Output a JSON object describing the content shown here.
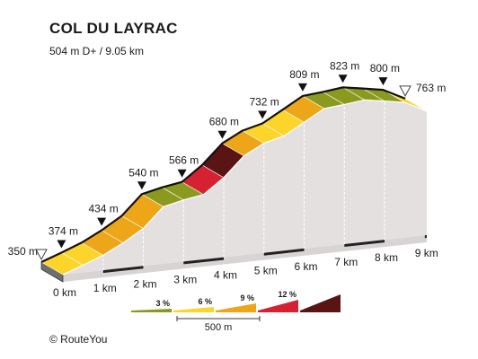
{
  "title": "COL DU LAYRAC",
  "subtitle": "504 m D+ / 9.05 km",
  "credit": "©  RouteYou",
  "chart_data": {
    "type": "area",
    "title": "COL DU LAYRAC",
    "subtitle": "504 m D+ / 9.05 km",
    "xlabel": "",
    "ylabel": "",
    "x_unit": "km",
    "xlim": [
      0,
      9.05
    ],
    "ylim": [
      350,
      823
    ],
    "x_ticks": [
      "0 km",
      "1 km",
      "2 km",
      "3 km",
      "4 km",
      "5 km",
      "6 km",
      "7 km",
      "8 km",
      "9 km"
    ],
    "profile": [
      {
        "x": 0.0,
        "y": 350
      },
      {
        "x": 0.5,
        "y": 374
      },
      {
        "x": 1.0,
        "y": 400
      },
      {
        "x": 1.5,
        "y": 434
      },
      {
        "x": 2.0,
        "y": 475
      },
      {
        "x": 2.5,
        "y": 540
      },
      {
        "x": 3.0,
        "y": 555
      },
      {
        "x": 3.5,
        "y": 566
      },
      {
        "x": 4.0,
        "y": 615
      },
      {
        "x": 4.5,
        "y": 680
      },
      {
        "x": 5.0,
        "y": 715
      },
      {
        "x": 5.5,
        "y": 732
      },
      {
        "x": 6.0,
        "y": 770
      },
      {
        "x": 6.5,
        "y": 809
      },
      {
        "x": 7.0,
        "y": 815
      },
      {
        "x": 7.5,
        "y": 823
      },
      {
        "x": 8.0,
        "y": 812
      },
      {
        "x": 8.5,
        "y": 800
      },
      {
        "x": 9.05,
        "y": 763
      }
    ],
    "segment_grades": [
      5,
      7,
      8,
      10,
      9,
      3,
      4,
      11,
      13,
      8,
      7,
      5,
      10,
      3,
      3,
      3,
      3,
      5
    ],
    "altitude_labels": [
      {
        "x": 0.0,
        "label": "350 m",
        "marker": "start"
      },
      {
        "x": 0.5,
        "label": "374 m",
        "marker": "point"
      },
      {
        "x": 1.5,
        "label": "434 m",
        "marker": "point"
      },
      {
        "x": 2.5,
        "label": "540 m",
        "marker": "point"
      },
      {
        "x": 3.5,
        "label": "566 m",
        "marker": "point"
      },
      {
        "x": 4.5,
        "label": "680 m",
        "marker": "point"
      },
      {
        "x": 5.5,
        "label": "732 m",
        "marker": "point"
      },
      {
        "x": 6.5,
        "label": "809 m",
        "marker": "point"
      },
      {
        "x": 7.5,
        "label": "823 m",
        "marker": "point"
      },
      {
        "x": 8.5,
        "label": "800 m",
        "marker": "point"
      },
      {
        "x": 9.05,
        "label": "763 m",
        "marker": "end"
      }
    ],
    "legend": {
      "items": [
        {
          "label": "3 %",
          "color": "#8b9a1e"
        },
        {
          "label": "6 %",
          "color": "#fdd42a"
        },
        {
          "label": "9 %",
          "color": "#eea619"
        },
        {
          "label": "12 %",
          "color": "#d42233"
        },
        {
          "label": "",
          "color": "#5a1414"
        }
      ],
      "scale_label": "500 m"
    },
    "grade_colors": {
      "3": "#8b9a1e",
      "6": "#fdd42a",
      "9": "#eea619",
      "12": "#d42233",
      "max": "#5a1414"
    },
    "grid": false
  }
}
